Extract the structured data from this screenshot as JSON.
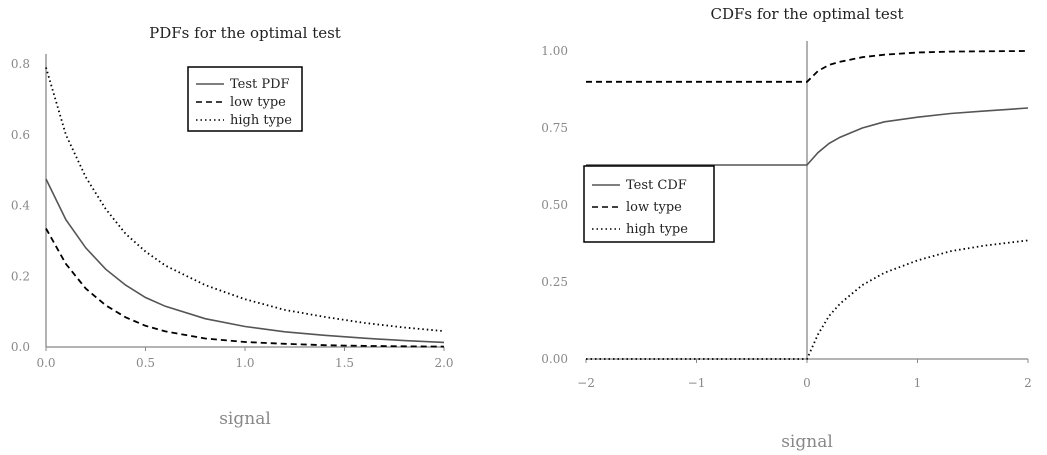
{
  "chart_data": [
    {
      "type": "line",
      "title": "PDFs for the optimal test",
      "xlabel": "signal",
      "ylabel": "",
      "xlim": [
        0,
        2
      ],
      "ylim": [
        0,
        0.8
      ],
      "xticks": [
        0,
        0.5,
        1,
        1.5,
        2
      ],
      "xtick_labels": [
        "0.0",
        "0.5",
        "1.0",
        "1.5",
        "2.0"
      ],
      "yticks": [
        0,
        0.2,
        0.4,
        0.6,
        0.8
      ],
      "ytick_labels": [
        "0.0",
        "0.2",
        "0.4",
        "0.6",
        "0.8"
      ],
      "grid": false,
      "legend_position": "top-center",
      "series": [
        {
          "name": "Test PDF",
          "style": "solid",
          "color": "#555555",
          "x": [
            0,
            0.1,
            0.2,
            0.3,
            0.4,
            0.5,
            0.6,
            0.8,
            1.0,
            1.2,
            1.4,
            1.6,
            1.8,
            2.0
          ],
          "y": [
            0.475,
            0.36,
            0.28,
            0.22,
            0.175,
            0.14,
            0.115,
            0.08,
            0.058,
            0.043,
            0.033,
            0.025,
            0.018,
            0.013
          ]
        },
        {
          "name": "low type",
          "style": "dashed",
          "color": "#000000",
          "x": [
            0,
            0.1,
            0.2,
            0.3,
            0.4,
            0.5,
            0.6,
            0.8,
            1.0,
            1.2,
            1.4,
            1.6,
            1.8,
            2.0
          ],
          "y": [
            0.335,
            0.235,
            0.165,
            0.118,
            0.084,
            0.06,
            0.044,
            0.024,
            0.014,
            0.009,
            0.005,
            0.003,
            0.002,
            0.001
          ]
        },
        {
          "name": "high type",
          "style": "dotted",
          "color": "#000000",
          "x": [
            0,
            0.1,
            0.2,
            0.3,
            0.4,
            0.5,
            0.6,
            0.8,
            1.0,
            1.2,
            1.4,
            1.6,
            1.8,
            2.0
          ],
          "y": [
            0.79,
            0.6,
            0.48,
            0.39,
            0.32,
            0.27,
            0.23,
            0.175,
            0.135,
            0.105,
            0.085,
            0.068,
            0.055,
            0.045
          ]
        }
      ]
    },
    {
      "type": "line",
      "title": "CDFs for the optimal test",
      "xlabel": "signal",
      "ylabel": "",
      "xlim": [
        -2,
        2
      ],
      "ylim": [
        0,
        1
      ],
      "xticks": [
        -2,
        -1,
        0,
        1,
        2
      ],
      "xtick_labels": [
        "−2",
        "−1",
        "0",
        "1",
        "2"
      ],
      "yticks": [
        0,
        0.25,
        0.5,
        0.75,
        1.0
      ],
      "ytick_labels": [
        "0.00",
        "0.25",
        "0.50",
        "0.75",
        "1.00"
      ],
      "grid": false,
      "legend_position": "center-left",
      "series": [
        {
          "name": "Test CDF",
          "style": "solid",
          "color": "#555555",
          "x": [
            -2,
            0,
            0.1,
            0.2,
            0.3,
            0.5,
            0.7,
            1.0,
            1.3,
            1.6,
            2.0
          ],
          "y": [
            0.63,
            0.63,
            0.67,
            0.7,
            0.72,
            0.75,
            0.77,
            0.785,
            0.797,
            0.805,
            0.815
          ]
        },
        {
          "name": "low type",
          "style": "dashed",
          "color": "#000000",
          "x": [
            -2,
            0,
            0.1,
            0.2,
            0.3,
            0.5,
            0.7,
            1.0,
            1.3,
            1.6,
            2.0
          ],
          "y": [
            0.9,
            0.9,
            0.935,
            0.955,
            0.965,
            0.98,
            0.988,
            0.995,
            0.998,
            0.999,
            1.0
          ]
        },
        {
          "name": "high type",
          "style": "dotted",
          "color": "#000000",
          "x": [
            -2,
            0,
            0.1,
            0.2,
            0.3,
            0.5,
            0.7,
            1.0,
            1.3,
            1.6,
            2.0
          ],
          "y": [
            0,
            0,
            0.08,
            0.14,
            0.18,
            0.24,
            0.28,
            0.32,
            0.35,
            0.368,
            0.385
          ]
        }
      ]
    }
  ]
}
